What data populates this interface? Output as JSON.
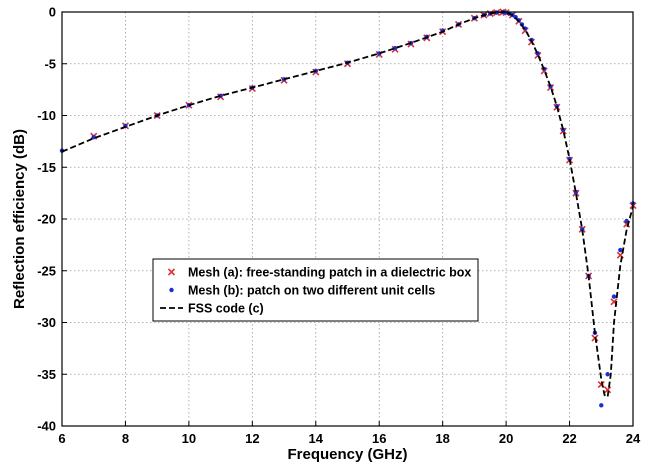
{
  "chart_data": {
    "type": "line",
    "title": "",
    "xlabel": "Frequency (GHz)",
    "ylabel": "Reflection efficiency (dB)",
    "xlim": [
      6,
      24
    ],
    "ylim": [
      -40,
      0
    ],
    "x_ticks": [
      "6",
      "8",
      "10",
      "12",
      "14",
      "16",
      "18",
      "20",
      "22",
      "24"
    ],
    "y_ticks": [
      "0",
      "-5",
      "-10",
      "-15",
      "-20",
      "-25",
      "-30",
      "-35",
      "-40"
    ],
    "grid": true,
    "legend_position": "center-left",
    "series": [
      {
        "name": "Mesh (a): free-standing patch in a dielectric box",
        "marker": "x",
        "color": "#e03030",
        "x": [
          7,
          8,
          9,
          10,
          11,
          12,
          13,
          14,
          15,
          16,
          16.5,
          17,
          17.5,
          18,
          18.5,
          19,
          19.3,
          19.5,
          19.7,
          19.9,
          20,
          20.2,
          20.4,
          20.6,
          20.8,
          21,
          21.2,
          21.4,
          21.6,
          21.8,
          22,
          22.2,
          22.4,
          22.6,
          22.8,
          23,
          23.2,
          23.4,
          23.6,
          23.8,
          24
        ],
        "y": [
          -12.0,
          -11.0,
          -10.0,
          -9.0,
          -8.2,
          -7.4,
          -6.6,
          -5.8,
          -5.0,
          -4.1,
          -3.6,
          -3.1,
          -2.5,
          -1.9,
          -1.2,
          -0.6,
          -0.3,
          -0.15,
          -0.05,
          0.0,
          -0.05,
          -0.3,
          -0.9,
          -1.8,
          -2.9,
          -4.2,
          -5.7,
          -7.3,
          -9.2,
          -11.5,
          -14.3,
          -17.5,
          -21.0,
          -25.5,
          -31.5,
          -36.0,
          -36.5,
          -28.0,
          -23.5,
          -20.5,
          -18.7
        ]
      },
      {
        "name": "Mesh (b): patch on two different unit cells",
        "marker": "dot",
        "color": "#1a2fd0",
        "x": [
          6,
          7,
          8,
          9,
          10,
          11,
          12,
          13,
          14,
          15,
          16,
          16.5,
          17,
          17.5,
          18,
          18.5,
          19,
          19.3,
          19.5,
          19.7,
          19.9,
          20,
          20.1,
          20.2,
          20.3,
          20.4,
          20.5,
          20.6,
          20.8,
          21,
          21.2,
          21.4,
          21.6,
          21.8,
          22,
          22.2,
          22.4,
          22.6,
          22.8,
          23,
          23.2,
          23.4,
          23.6,
          23.8,
          24
        ],
        "y": [
          -13.4,
          -12.1,
          -11.0,
          -10.0,
          -9.0,
          -8.1,
          -7.3,
          -6.5,
          -5.7,
          -4.9,
          -4.0,
          -3.5,
          -3.0,
          -2.4,
          -1.8,
          -1.2,
          -0.6,
          -0.3,
          -0.15,
          -0.05,
          -0.02,
          -0.05,
          -0.15,
          -0.3,
          -0.5,
          -0.8,
          -1.2,
          -1.6,
          -2.7,
          -4.0,
          -5.5,
          -7.2,
          -9.1,
          -11.4,
          -14.2,
          -17.4,
          -21.0,
          -25.5,
          -31.0,
          -38.0,
          -35.0,
          -27.5,
          -23.0,
          -20.2,
          -18.5
        ]
      },
      {
        "name": "FSS code (c)",
        "line": "dashed",
        "color": "#000000",
        "x": [
          6,
          7,
          8,
          9,
          10,
          11,
          12,
          13,
          14,
          15,
          16,
          17,
          18,
          18.5,
          19,
          19.3,
          19.5,
          19.7,
          19.9,
          20,
          20.2,
          20.4,
          20.6,
          20.8,
          21,
          21.2,
          21.4,
          21.6,
          21.8,
          22,
          22.2,
          22.4,
          22.6,
          22.8,
          23,
          23.1,
          23.2,
          23.3,
          23.4,
          23.6,
          23.8,
          24
        ],
        "y": [
          -13.5,
          -12.2,
          -11.1,
          -10.0,
          -9.0,
          -8.1,
          -7.3,
          -6.5,
          -5.7,
          -4.9,
          -4.0,
          -3.0,
          -1.9,
          -1.2,
          -0.6,
          -0.3,
          -0.15,
          -0.05,
          0.0,
          -0.05,
          -0.3,
          -0.9,
          -1.7,
          -2.8,
          -4.1,
          -5.6,
          -7.2,
          -9.1,
          -11.4,
          -14.2,
          -17.5,
          -21.0,
          -25.5,
          -31.0,
          -35.5,
          -37.0,
          -37.2,
          -35.0,
          -30.0,
          -24.5,
          -21.0,
          -18.8
        ]
      }
    ]
  }
}
